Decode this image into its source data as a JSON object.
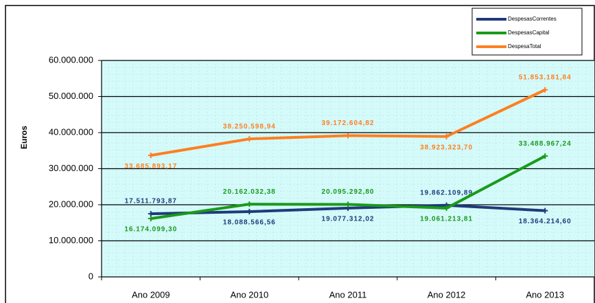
{
  "chart_data": {
    "type": "line",
    "y_label": "Euros",
    "categories": [
      "Ano 2009",
      "Ano 2010",
      "Ano 2011",
      "Ano 2012",
      "Ano 2013"
    ],
    "series": [
      {
        "name": "DespesasCorrentes",
        "color": "#1f3a7a",
        "values": [
          17511793.87,
          18088566.56,
          19077312.02,
          19862109.89,
          18364214.6
        ],
        "value_labels": [
          "17.511.793,87",
          "18.088.566,56",
          "19.077.312,02",
          "19.862.109,89",
          "18.364.214,60"
        ]
      },
      {
        "name": "DespesasCapital",
        "color": "#1a9a1a",
        "values": [
          16174099.3,
          20162032.38,
          20095292.8,
          19061213.81,
          33488967.24
        ],
        "value_labels": [
          "16.174.099,30",
          "20.162.032,38",
          "20.095.292,80",
          "19.061.213,81",
          "33.488.967,24"
        ]
      },
      {
        "name": "DespesaTotal",
        "color": "#ff7f1f",
        "values": [
          33685893.17,
          38250598.94,
          39172604.82,
          38923323.7,
          51853181.84
        ],
        "value_labels": [
          "33.685.893,17",
          "38.250.598,94",
          "39.172.604,82",
          "38.923.323,70",
          "51.853.181,84"
        ]
      }
    ],
    "ylim": [
      0,
      60000000
    ],
    "yticks": [
      0,
      {
        "value": 10000000,
        "label": "10.000.000"
      },
      {
        "value": 20000000,
        "label": "20.000.000"
      },
      {
        "value": 30000000,
        "label": "30.000.000"
      },
      {
        "value": 40000000,
        "label": "40.000.000"
      },
      {
        "value": 50000000,
        "label": "50.000.000"
      },
      {
        "value": 60000000,
        "label": "60.000.000"
      }
    ],
    "grid": true,
    "legend": "top-right"
  }
}
